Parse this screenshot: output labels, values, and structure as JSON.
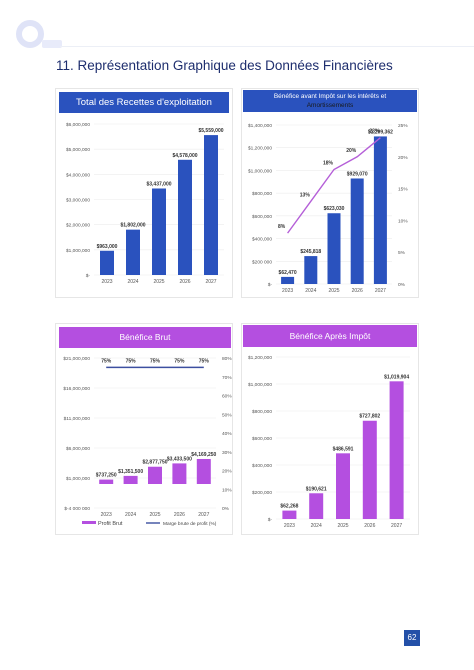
{
  "page": {
    "section_title": "11. Représentation Graphique des Données Financières",
    "page_number": "62"
  },
  "chart_data": [
    {
      "type": "bar",
      "title": "Total des Recettes d'exploitation",
      "categories": [
        "2023",
        "2024",
        "2025",
        "2026",
        "2027"
      ],
      "values": [
        963000,
        1802000,
        3437000,
        4578000,
        5559000
      ],
      "data_labels": [
        "$963,000",
        "$1,802,000",
        "$3,437,000",
        "$4,578,000",
        "$5,559,000"
      ],
      "ylim": [
        0,
        6000000
      ],
      "yticks": [
        0,
        1000000,
        2000000,
        3000000,
        4000000,
        5000000,
        6000000
      ],
      "ytick_labels": [
        "$-",
        "$1,000,000",
        "$2,000,000",
        "$3,000,000",
        "$4,000,000",
        "$5,000,000",
        "$6,000,000"
      ],
      "bar_color": "#2a52be",
      "header_color": "#2a52be"
    },
    {
      "type": "bar",
      "title": "Bénéfice avant Impôt sur les intérêts et Amortissements",
      "title_lines": [
        "Bénéfice avant Impôt sur les intérêts et",
        "Amortissements"
      ],
      "categories": [
        "2023",
        "2024",
        "2025",
        "2026",
        "2027"
      ],
      "values": [
        62470,
        245818,
        623030,
        929070,
        1299362
      ],
      "data_labels": [
        "$62,470",
        "$245,818",
        "$623,030",
        "$929,070",
        "$1,299,362"
      ],
      "ylim": [
        0,
        1400000
      ],
      "yticks": [
        0,
        200000,
        400000,
        600000,
        800000,
        1000000,
        1200000,
        1400000
      ],
      "ytick_labels": [
        "$-",
        "$200 000",
        "$400,000",
        "$600,000",
        "$800,000",
        "$1,000,000",
        "$1,200,000",
        "$1,400,000"
      ],
      "bar_color": "#2a52be",
      "header_color": "#2a52be",
      "secondary": {
        "values": [
          8,
          13,
          18,
          20,
          23
        ],
        "data_labels": [
          "8%",
          "13%",
          "18%",
          "20%",
          "23%"
        ],
        "ylim": [
          0,
          25
        ],
        "yticks": [
          0,
          5,
          10,
          15,
          20,
          25
        ],
        "ytick_labels": [
          "0%",
          "5%",
          "10%",
          "15%",
          "20%",
          "25%"
        ],
        "line_color": "#b55fd8"
      }
    },
    {
      "type": "bar",
      "title": "Bénéfice Brut",
      "categories": [
        "2023",
        "2024",
        "2025",
        "2026",
        "2027"
      ],
      "values": [
        737250,
        1351500,
        2877750,
        3433500,
        4169250
      ],
      "data_labels": [
        "$737,250",
        "$1,351,500",
        "$2,877,750",
        "$3,433,500",
        "$4,169,250"
      ],
      "ylim": [
        -4000000,
        21000000
      ],
      "yticks": [
        -4000000,
        1000000,
        6000000,
        11000000,
        16000000,
        21000000
      ],
      "ytick_labels": [
        "$-4 000 000",
        "$1,000,000",
        "$6,000,000",
        "$11,000,000",
        "$16,000,000",
        "$21,000,000"
      ],
      "bar_color": "#b44fe0",
      "header_color": "#b44fe0",
      "secondary": {
        "values": [
          75,
          75,
          75,
          75,
          75
        ],
        "data_labels": [
          "75%",
          "75%",
          "75%",
          "75%",
          "75%"
        ],
        "ylim": [
          0,
          80
        ],
        "yticks": [
          0,
          10,
          20,
          30,
          40,
          50,
          60,
          70,
          80
        ],
        "ytick_labels": [
          "0%",
          "10%",
          "20%",
          "30%",
          "40%",
          "50%",
          "60%",
          "70%",
          "80%"
        ],
        "line_color": "#3c4fa0"
      },
      "legend": [
        "Profit Brut",
        "Marge brute de profit (%)"
      ],
      "legend_placement": "bottom"
    },
    {
      "type": "bar",
      "title": "Bénéfice Après Impôt",
      "categories": [
        "2023",
        "2024",
        "2025",
        "2026",
        "2027"
      ],
      "values": [
        62268,
        190621,
        486591,
        727802,
        1019904
      ],
      "data_labels": [
        "$62,268",
        "$190,621",
        "$486,591",
        "$727,802",
        "$1,019,904"
      ],
      "ylim": [
        0,
        1200000
      ],
      "yticks": [
        0,
        200000,
        400000,
        600000,
        800000,
        1000000,
        1200000
      ],
      "ytick_labels": [
        "$-",
        "$200,000",
        "$400,000",
        "$600,000",
        "$800,000",
        "$1,000,000",
        "$1,200,000"
      ],
      "bar_color": "#b44fe0",
      "header_color": "#b44fe0"
    }
  ]
}
